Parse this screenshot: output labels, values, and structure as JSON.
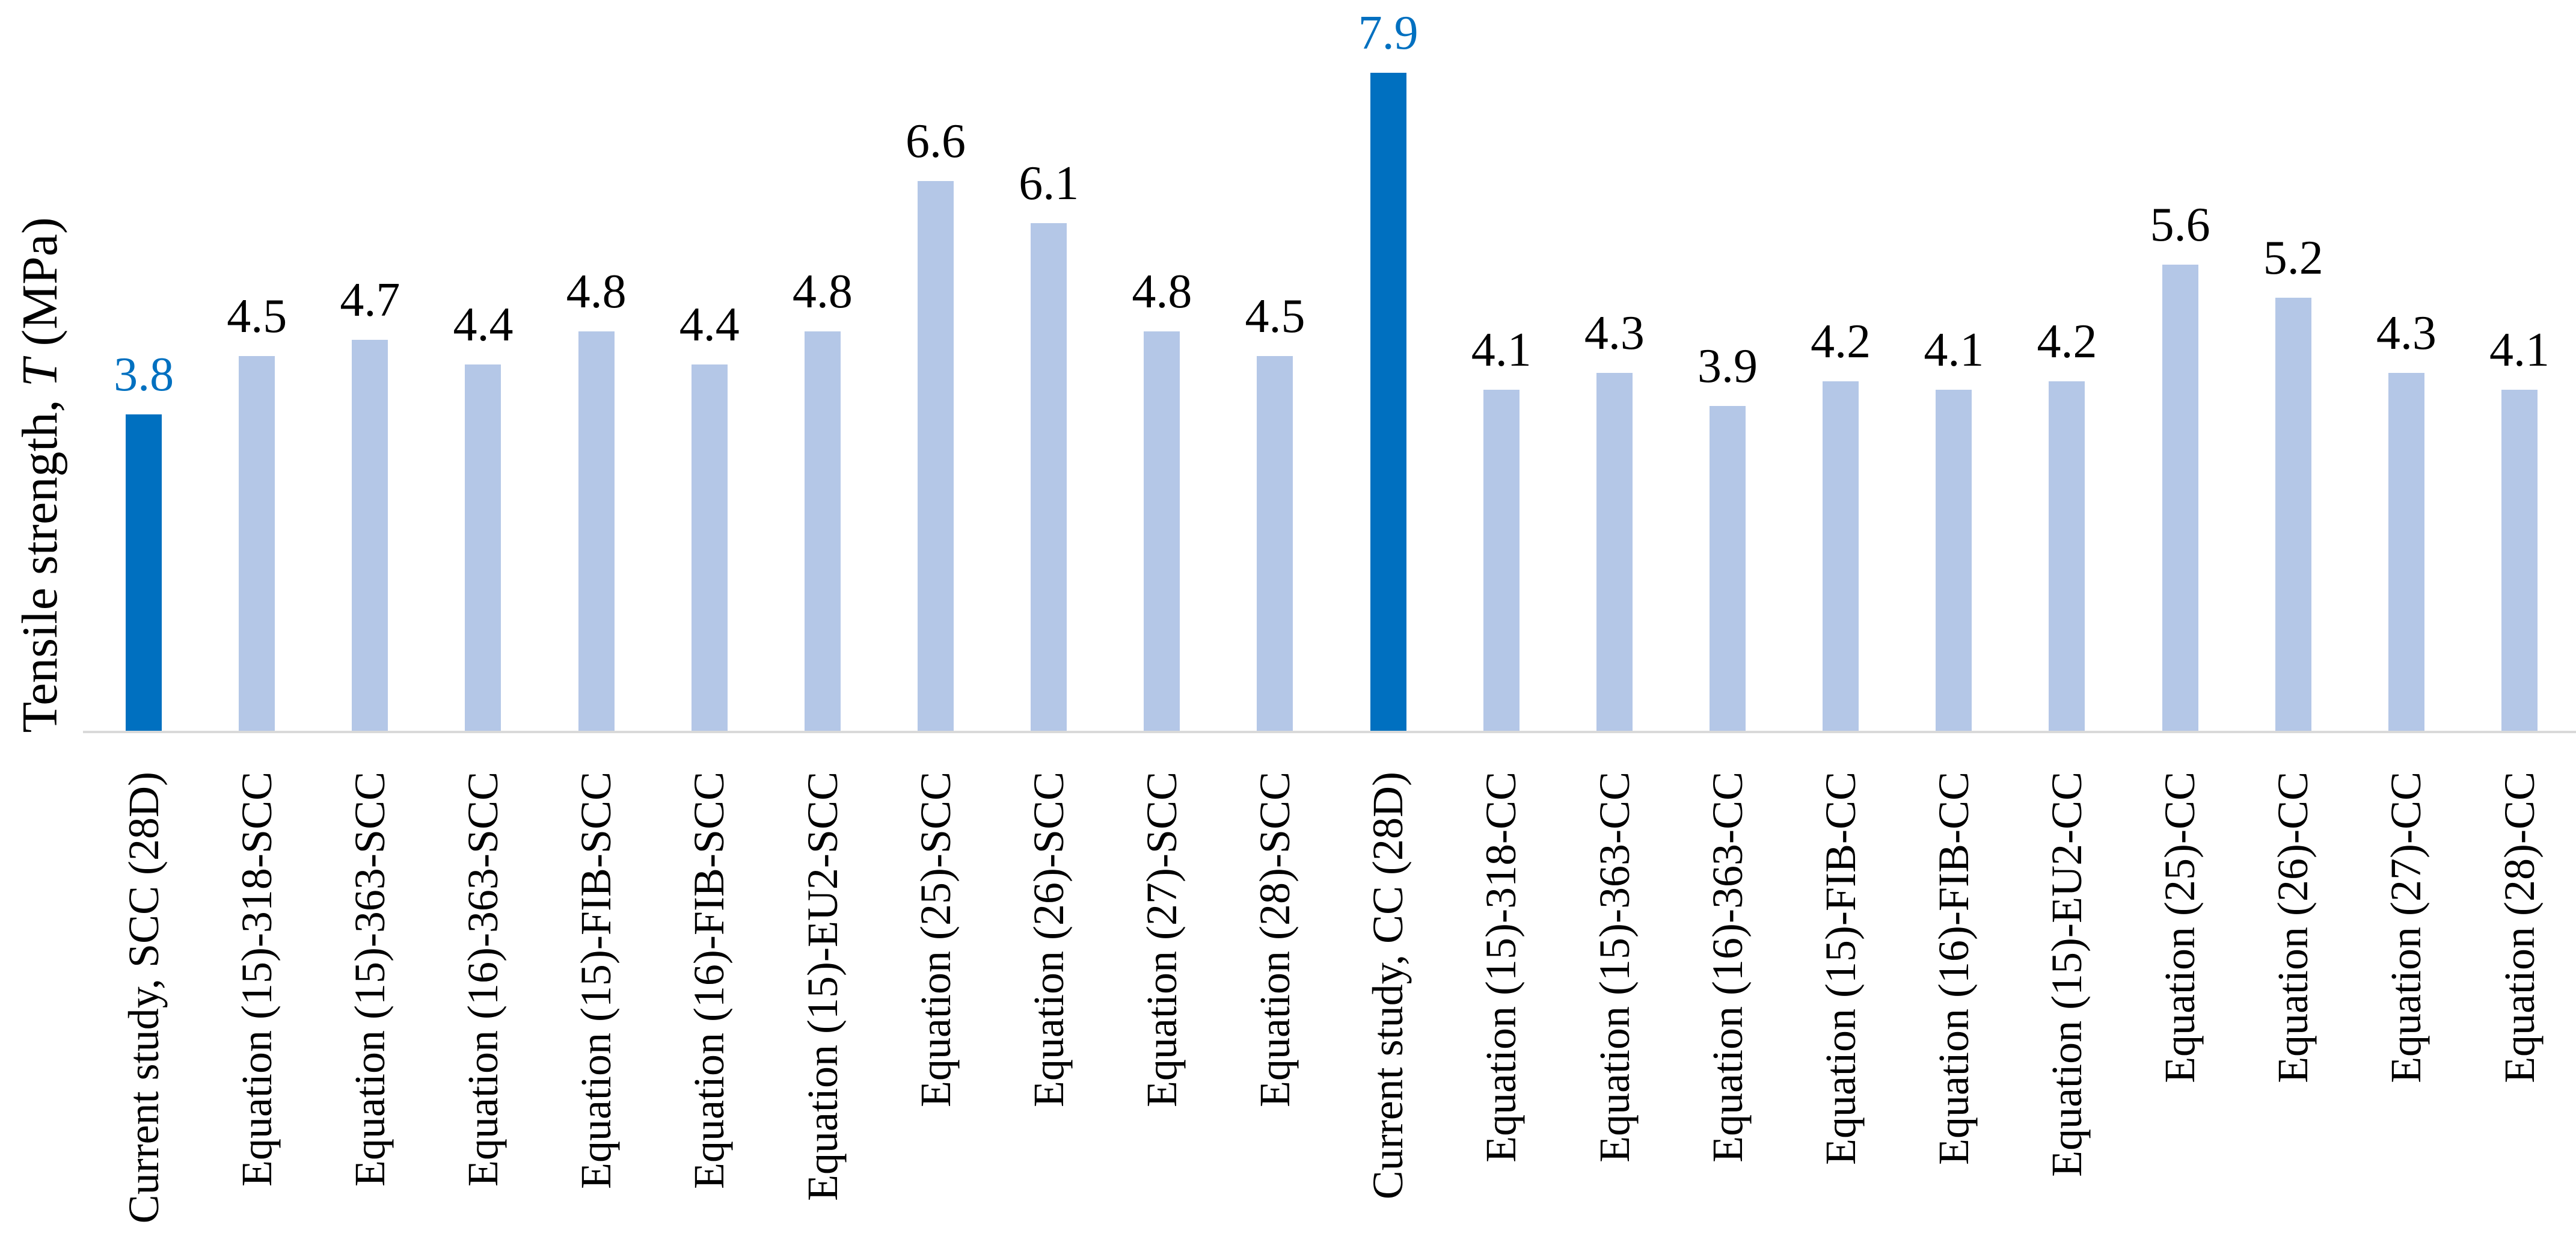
{
  "chart_data": {
    "type": "bar",
    "title": "",
    "ylabel": {
      "prefix": "Tensile strength, ",
      "symbol": "T",
      "suffix": " (MPa)"
    },
    "categories": [
      "Current study, SCC (28D)",
      "Equation (15)-318-SCC",
      "Equation (15)-363-SCC",
      "Equation (16)-363-SCC",
      "Equation (15)-FIB-SCC",
      "Equation (16)-FIB-SCC",
      "Equation (15)-EU2-SCC",
      "Equation (25)-SCC",
      "Equation (26)-SCC",
      "Equation (27)-SCC",
      "Equation (28)-SCC",
      "Current study, CC (28D)",
      "Equation (15)-318-CC",
      "Equation (15)-363-CC",
      "Equation (16)-363-CC",
      "Equation (15)-FIB-CC",
      "Equation (16)-FIB-CC",
      "Equation (15)-EU2-CC",
      "Equation (25)-CC",
      "Equation (26)-CC",
      "Equation (27)-CC",
      "Equation (28)-CC"
    ],
    "values": [
      3.8,
      4.5,
      4.7,
      4.4,
      4.8,
      4.4,
      4.8,
      6.6,
      6.1,
      4.8,
      4.5,
      7.9,
      4.1,
      4.3,
      3.9,
      4.2,
      4.1,
      4.2,
      5.6,
      5.2,
      4.3,
      4.1
    ],
    "highlight_indices": [
      0,
      11
    ],
    "value_label_decimals": 1,
    "bar_label_position": "above",
    "category_label_rotation_degrees": 90,
    "ylim": [
      0,
      8.77
    ],
    "grid": false,
    "legend": false,
    "colors": {
      "bar_fill": "#B4C7E7",
      "bar_highlight_fill": "#0070C0",
      "value_label_color": "#000000",
      "value_label_highlight_color": "#0070C0",
      "axis_line_color": "#D9D9D9",
      "text_color": "#000000",
      "background": "#FFFFFF"
    }
  }
}
